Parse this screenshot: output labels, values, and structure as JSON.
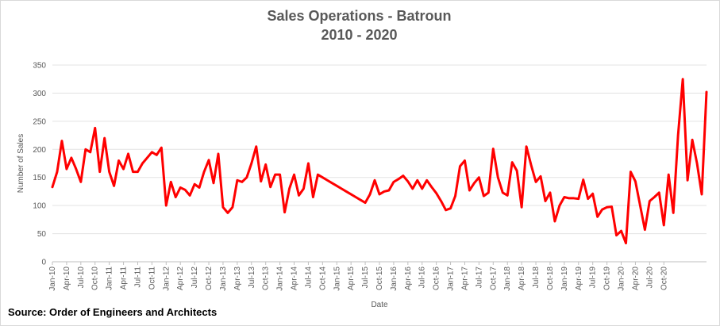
{
  "chart_data": {
    "type": "line",
    "title": "Sales Operations - Batroun",
    "subtitle": "2010 - 2020",
    "xlabel": "Date",
    "ylabel": "Number of Sales",
    "ylim": [
      0,
      350
    ],
    "yticks": [
      0,
      50,
      100,
      150,
      200,
      250,
      300,
      350
    ],
    "grid": true,
    "legend": "none",
    "line_color": "#ff0000",
    "x_tick_labels": [
      "Jan-10",
      "Apr-10",
      "Jul-10",
      "Oct-10",
      "Jan-11",
      "Apr-11",
      "Jul-11",
      "Oct-11",
      "Jan-12",
      "Apr-12",
      "Jul-12",
      "Oct-12",
      "Jan-13",
      "Apr-13",
      "Jul-13",
      "Oct-13",
      "Jan-14",
      "Apr-14",
      "Jul-14",
      "Oct-14",
      "Jan-15",
      "Apr-15",
      "Jul-15",
      "Oct-15",
      "Jan-16",
      "Apr-16",
      "Jul-16",
      "Oct-16",
      "Jan-17",
      "Apr-17",
      "Jul-17",
      "Oct-17",
      "Jan-18",
      "Apr-18",
      "Jul-18",
      "Oct-18",
      "Jan-19",
      "Apr-19",
      "Jul-19",
      "Oct-19",
      "Jan-20",
      "Apr-20",
      "Jul-20",
      "Oct-20"
    ],
    "series": [
      {
        "values": [
          133,
          160,
          215,
          165,
          185,
          165,
          142,
          200,
          195,
          238,
          160,
          220,
          160,
          135,
          180,
          165,
          192,
          160,
          160,
          175,
          185,
          195,
          190,
          203,
          100,
          142,
          115,
          132,
          128,
          118,
          138,
          132,
          160,
          181,
          140,
          192,
          97,
          87,
          97,
          145,
          142,
          150,
          175,
          205,
          143,
          173,
          133,
          155,
          155,
          88,
          130,
          155,
          118,
          130,
          175,
          115,
          155,
          150,
          145,
          140,
          135,
          130,
          125,
          120,
          115,
          110,
          105,
          120,
          145,
          120,
          125,
          127,
          142,
          147,
          153,
          143,
          130,
          145,
          130,
          145,
          133,
          122,
          108,
          92,
          95,
          117,
          170,
          180,
          127,
          140,
          150,
          117,
          123,
          201,
          150,
          123,
          118,
          177,
          162,
          97,
          205,
          172,
          142,
          152,
          108,
          123,
          72,
          100,
          115,
          113,
          113,
          112,
          146,
          112,
          121,
          80,
          93,
          97,
          98,
          47,
          55,
          33,
          160,
          143,
          100,
          57,
          108,
          115,
          123,
          65,
          155,
          87,
          225,
          325,
          145,
          217,
          175,
          120,
          302
        ]
      }
    ]
  },
  "source": "Source: Order of Engineers and Architects"
}
